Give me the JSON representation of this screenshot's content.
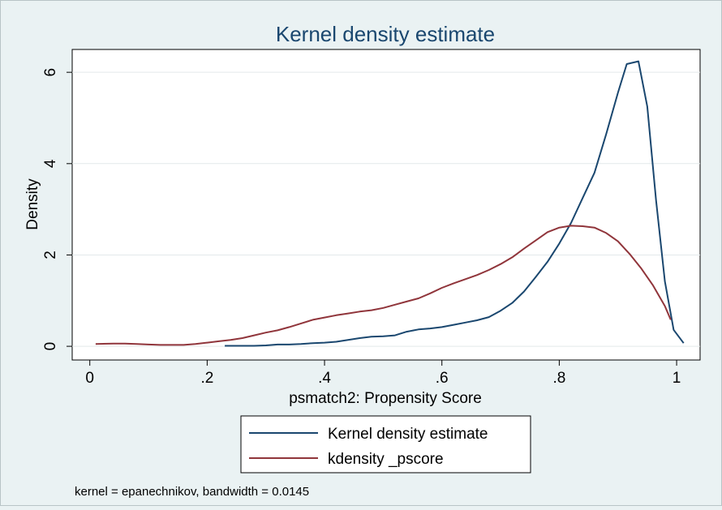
{
  "chart_data": {
    "type": "line",
    "title": "Kernel density estimate",
    "xlabel": "psmatch2: Propensity Score",
    "ylabel": "Density",
    "xlim": [
      -0.03,
      1.04
    ],
    "ylim": [
      -0.3,
      6.5
    ],
    "xticks": [
      0,
      0.2,
      0.4,
      0.6,
      0.8,
      1
    ],
    "xtick_labels": [
      "0",
      ".2",
      ".4",
      ".6",
      ".8",
      "1"
    ],
    "yticks": [
      0,
      2,
      4,
      6
    ],
    "ytick_labels": [
      "0",
      "2",
      "4",
      "6"
    ],
    "grid": true,
    "legend": "bottom",
    "note": "kernel = epanechnikov, bandwidth = 0.0145",
    "series": [
      {
        "name": "Kernel density estimate",
        "color": "#1a476f",
        "x": [
          0.23,
          0.25,
          0.28,
          0.3,
          0.32,
          0.34,
          0.36,
          0.38,
          0.4,
          0.42,
          0.44,
          0.46,
          0.48,
          0.5,
          0.52,
          0.54,
          0.56,
          0.58,
          0.6,
          0.62,
          0.64,
          0.66,
          0.68,
          0.7,
          0.72,
          0.74,
          0.76,
          0.78,
          0.8,
          0.82,
          0.84,
          0.86,
          0.88,
          0.9,
          0.915,
          0.935,
          0.95,
          0.965,
          0.98,
          0.995,
          1.012
        ],
        "y": [
          0.01,
          0.01,
          0.01,
          0.02,
          0.04,
          0.04,
          0.05,
          0.07,
          0.08,
          0.1,
          0.14,
          0.18,
          0.21,
          0.22,
          0.24,
          0.32,
          0.37,
          0.39,
          0.42,
          0.47,
          0.52,
          0.57,
          0.64,
          0.78,
          0.95,
          1.2,
          1.52,
          1.85,
          2.25,
          2.7,
          3.25,
          3.8,
          4.65,
          5.55,
          6.18,
          6.24,
          5.25,
          3.2,
          1.42,
          0.36,
          0.07
        ]
      },
      {
        "name": "kdensity _pscore",
        "color": "#90353b",
        "x": [
          0.01,
          0.04,
          0.06,
          0.08,
          0.1,
          0.12,
          0.14,
          0.16,
          0.18,
          0.2,
          0.22,
          0.24,
          0.26,
          0.28,
          0.3,
          0.32,
          0.34,
          0.36,
          0.38,
          0.4,
          0.42,
          0.44,
          0.46,
          0.48,
          0.5,
          0.52,
          0.54,
          0.56,
          0.58,
          0.6,
          0.62,
          0.64,
          0.66,
          0.68,
          0.7,
          0.72,
          0.74,
          0.76,
          0.78,
          0.8,
          0.82,
          0.84,
          0.86,
          0.88,
          0.9,
          0.92,
          0.94,
          0.96,
          0.98,
          0.99
        ],
        "y": [
          0.05,
          0.06,
          0.06,
          0.05,
          0.04,
          0.03,
          0.03,
          0.03,
          0.05,
          0.08,
          0.11,
          0.14,
          0.18,
          0.24,
          0.3,
          0.35,
          0.42,
          0.5,
          0.58,
          0.63,
          0.68,
          0.72,
          0.76,
          0.79,
          0.84,
          0.91,
          0.98,
          1.05,
          1.16,
          1.28,
          1.38,
          1.47,
          1.56,
          1.67,
          1.8,
          1.95,
          2.14,
          2.32,
          2.5,
          2.6,
          2.64,
          2.63,
          2.6,
          2.48,
          2.3,
          2.02,
          1.7,
          1.33,
          0.88,
          0.58
        ]
      }
    ]
  }
}
